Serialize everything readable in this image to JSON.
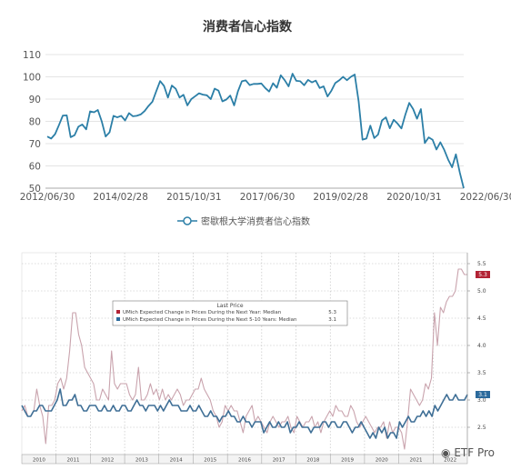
{
  "chart_data": [
    {
      "type": "line",
      "title": "消费者信心指数",
      "xlabel": "",
      "ylabel": "",
      "x_tick_labels": [
        "2012/06/30",
        "2014/02/28",
        "2015/10/31",
        "2017/06/30",
        "2019/02/28",
        "2020/10/31",
        "2022/06/30"
      ],
      "ylim": [
        50,
        110
      ],
      "y_ticks": [
        50,
        60,
        70,
        80,
        90,
        100,
        110
      ],
      "grid": true,
      "legend_position": "bottom",
      "series": [
        {
          "name": "密歇根大学消费者信心指数",
          "color": "#2c7fa7",
          "values": [
            73.2,
            72.3,
            74.3,
            78.3,
            82.6,
            82.7,
            72.9,
            73.8,
            77.6,
            78.6,
            76.4,
            84.5,
            84.1,
            85.1,
            80.0,
            73.2,
            75.1,
            82.5,
            81.8,
            82.5,
            80.4,
            83.7,
            82.3,
            82.5,
            83.1,
            84.6,
            86.9,
            88.8,
            93.6,
            98.1,
            95.9,
            90.7,
            96.1,
            94.6,
            90.7,
            91.9,
            87.2,
            90.0,
            91.3,
            92.6,
            92.0,
            91.7,
            90.0,
            94.7,
            93.8,
            89.0,
            89.8,
            91.6,
            87.2,
            93.5,
            98.0,
            98.4,
            96.3,
            96.8,
            96.8,
            97.0,
            95.0,
            93.4,
            97.1,
            95.1,
            100.7,
            98.5,
            95.7,
            101.4,
            98.2,
            98.0,
            96.2,
            98.6,
            97.5,
            98.3,
            95.0,
            95.7,
            91.2,
            93.8,
            97.2,
            98.4,
            100.0,
            98.5,
            100.0,
            101.0,
            89.1,
            71.8,
            72.3,
            78.1,
            72.5,
            74.1,
            80.4,
            81.8,
            76.9,
            80.7,
            79.0,
            76.8,
            83.0,
            88.3,
            85.5,
            81.2,
            85.5,
            70.3,
            72.8,
            71.7,
            67.4,
            70.6,
            67.2,
            62.8,
            59.4,
            65.2,
            57.0,
            50.0
          ]
        }
      ]
    },
    {
      "type": "line",
      "title": "",
      "xlabel": "",
      "ylabel": "",
      "x_tick_labels": [
        "2010",
        "2011",
        "2012",
        "2013",
        "2014",
        "2015",
        "2016",
        "2017",
        "2018",
        "2019",
        "2020",
        "2021",
        "2022"
      ],
      "ylim": [
        2.0,
        5.7
      ],
      "y_ticks": [
        2.5,
        3.0,
        3.5,
        4.0,
        4.5,
        5.0,
        5.5
      ],
      "y_tick_labels": [
        "2.5",
        "3.0",
        "3.5",
        "4.0",
        "4.5",
        "5.0",
        "5.5"
      ],
      "value_badges": [
        "5.3",
        "3.1"
      ],
      "grid": true,
      "legend": {
        "title": "Last Price",
        "entries": [
          "UMich Expected Change in Prices During the Next Year: Median",
          "UMich Expected Change in Prices During the Next 5-10 Years: Median"
        ],
        "values": [
          "5.3",
          "3.1"
        ]
      },
      "series": [
        {
          "name": "UMich Expected Change in Prices During the Next Year: Median",
          "color": "#c9a3ad",
          "values": [
            2.8,
            2.9,
            2.7,
            2.7,
            2.8,
            3.2,
            2.9,
            2.7,
            2.2,
            2.9,
            2.9,
            3.0,
            3.3,
            3.4,
            3.2,
            3.4,
            3.9,
            4.6,
            4.6,
            4.2,
            4.0,
            3.6,
            3.5,
            3.4,
            3.3,
            3.0,
            3.0,
            3.2,
            3.1,
            3.0,
            3.9,
            3.3,
            3.2,
            3.3,
            3.3,
            3.3,
            3.1,
            3.0,
            3.1,
            3.6,
            3.0,
            3.0,
            3.1,
            3.3,
            3.1,
            3.2,
            3.0,
            3.2,
            3.0,
            3.1,
            3.0,
            3.1,
            3.2,
            3.1,
            2.9,
            3.0,
            3.0,
            3.1,
            3.2,
            3.2,
            3.4,
            3.2,
            3.1,
            3.0,
            2.8,
            2.7,
            2.5,
            2.6,
            2.9,
            2.8,
            2.9,
            2.8,
            2.8,
            2.6,
            2.4,
            2.7,
            2.8,
            2.9,
            2.6,
            2.7,
            2.6,
            2.5,
            2.4,
            2.6,
            2.7,
            2.6,
            2.5,
            2.6,
            2.6,
            2.7,
            2.5,
            2.4,
            2.7,
            2.6,
            2.5,
            2.6,
            2.6,
            2.7,
            2.5,
            2.6,
            2.4,
            2.6,
            2.7,
            2.8,
            2.7,
            2.9,
            2.8,
            2.8,
            2.7,
            2.7,
            2.9,
            2.8,
            2.6,
            2.5,
            2.6,
            2.7,
            2.6,
            2.5,
            2.4,
            2.5,
            2.5,
            2.6,
            2.3,
            2.6,
            2.4,
            2.5,
            2.5,
            2.4,
            2.1,
            2.6,
            3.2,
            3.1,
            3.0,
            2.9,
            3.0,
            3.3,
            3.2,
            3.4,
            4.6,
            4.0,
            4.7,
            4.6,
            4.8,
            4.9,
            4.9,
            5.0,
            5.4,
            5.4,
            5.3,
            5.3
          ]
        },
        {
          "name": "UMich Expected Change in Prices During the Next 5-10 Years: Median",
          "color": "#3f6f96",
          "values": [
            2.9,
            2.8,
            2.7,
            2.7,
            2.8,
            2.8,
            2.9,
            2.9,
            2.8,
            2.8,
            2.8,
            2.9,
            3.0,
            3.2,
            2.9,
            2.9,
            3.0,
            3.0,
            3.1,
            2.9,
            2.9,
            2.8,
            2.8,
            2.9,
            2.9,
            2.9,
            2.8,
            2.8,
            2.9,
            2.8,
            2.8,
            2.9,
            2.8,
            2.8,
            2.9,
            2.9,
            2.8,
            2.8,
            2.9,
            3.0,
            2.9,
            2.9,
            2.8,
            2.9,
            2.9,
            2.9,
            2.8,
            2.9,
            2.8,
            2.9,
            3.0,
            2.9,
            2.9,
            2.9,
            2.8,
            2.8,
            2.8,
            2.9,
            2.8,
            2.8,
            2.9,
            2.8,
            2.7,
            2.7,
            2.8,
            2.7,
            2.7,
            2.6,
            2.7,
            2.7,
            2.8,
            2.7,
            2.7,
            2.6,
            2.6,
            2.7,
            2.6,
            2.6,
            2.5,
            2.6,
            2.6,
            2.6,
            2.4,
            2.5,
            2.6,
            2.5,
            2.5,
            2.6,
            2.5,
            2.5,
            2.6,
            2.4,
            2.5,
            2.5,
            2.6,
            2.5,
            2.5,
            2.5,
            2.4,
            2.5,
            2.5,
            2.5,
            2.6,
            2.6,
            2.5,
            2.6,
            2.6,
            2.5,
            2.5,
            2.6,
            2.6,
            2.5,
            2.4,
            2.5,
            2.5,
            2.6,
            2.5,
            2.4,
            2.3,
            2.4,
            2.3,
            2.5,
            2.4,
            2.5,
            2.3,
            2.4,
            2.4,
            2.3,
            2.6,
            2.5,
            2.6,
            2.7,
            2.6,
            2.6,
            2.7,
            2.7,
            2.8,
            2.7,
            2.8,
            2.7,
            2.9,
            2.8,
            2.9,
            3.0,
            3.1,
            3.0,
            3.0,
            3.1,
            3.0,
            3.0,
            3.0,
            3.1
          ]
        }
      ]
    }
  ],
  "watermark": {
    "icon": "wechat-icon",
    "text": "ETF Pro"
  }
}
